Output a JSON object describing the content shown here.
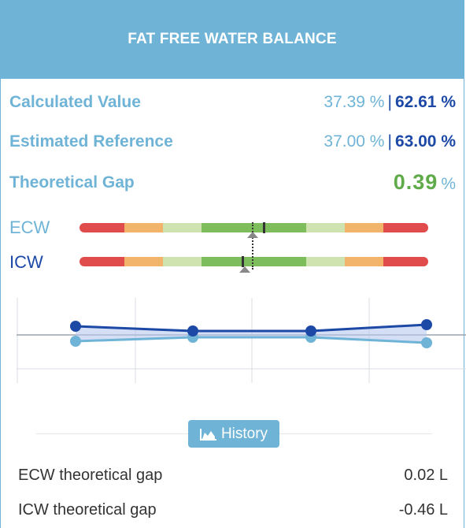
{
  "header": {
    "title": "FAT FREE WATER BALANCE"
  },
  "calculated": {
    "label": "Calculated Value",
    "ecw": "37.39 %",
    "icw": "62.61 %"
  },
  "estimated": {
    "label": "Estimated Reference",
    "ecw": "37.00 %",
    "icw": "63.00 %"
  },
  "gap": {
    "label": "Theoretical Gap",
    "value": "0.39",
    "unit": "%"
  },
  "bars": {
    "ecw_label": "ECW",
    "icw_label": "ICW",
    "colors": {
      "red": "#e04b4b",
      "orange": "#f2b36b",
      "lightgreen": "#cfe3b0",
      "green": "#7dbd5c"
    }
  },
  "chart_data": {
    "type": "line",
    "series": [
      {
        "color": "#1c48a6",
        "values": [
          62.61,
          62.2,
          62.2,
          62.3,
          62.6
        ]
      },
      {
        "color": "#6fb4d6",
        "values": [
          37.39,
          37.7,
          37.7,
          37.7,
          37.4
        ]
      }
    ],
    "grid": true
  },
  "history_button": {
    "label": "History",
    "icon": "area-chart-icon"
  },
  "results": [
    {
      "label": "ECW theoretical gap",
      "value": "0.02 L"
    },
    {
      "label": "ICW theoretical gap",
      "value": "-0.46 L"
    }
  ]
}
